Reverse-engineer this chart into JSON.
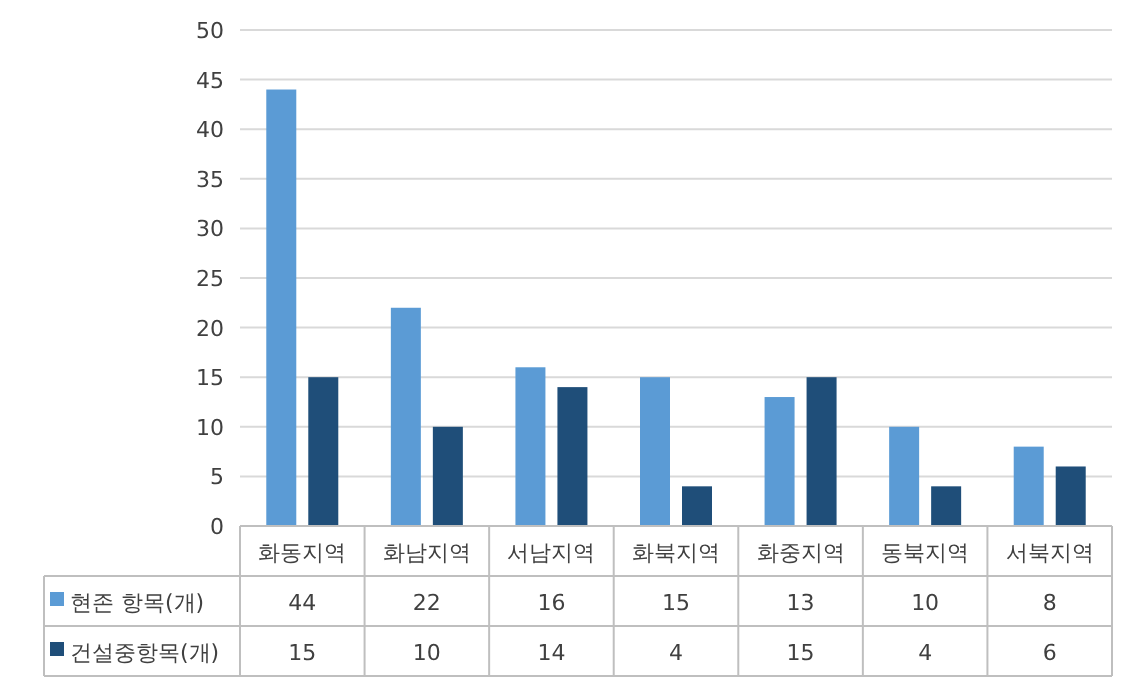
{
  "chart_data": {
    "type": "bar",
    "categories": [
      "화동지역",
      "화남지역",
      "서남지역",
      "화북지역",
      "화중지역",
      "동북지역",
      "서북지역"
    ],
    "series": [
      {
        "name": "현존 항목(개)",
        "color": "#5b9bd5",
        "values": [
          44,
          22,
          16,
          15,
          13,
          10,
          8
        ]
      },
      {
        "name": "건설중항목(개)",
        "color": "#1f4e79",
        "values": [
          15,
          10,
          14,
          4,
          15,
          4,
          6
        ]
      }
    ],
    "ylim": [
      0,
      50
    ],
    "yticks": [
      0,
      5,
      10,
      15,
      20,
      25,
      30,
      35,
      40,
      45,
      50
    ],
    "grid": "y",
    "data_labels": true,
    "legend": "bottom"
  }
}
